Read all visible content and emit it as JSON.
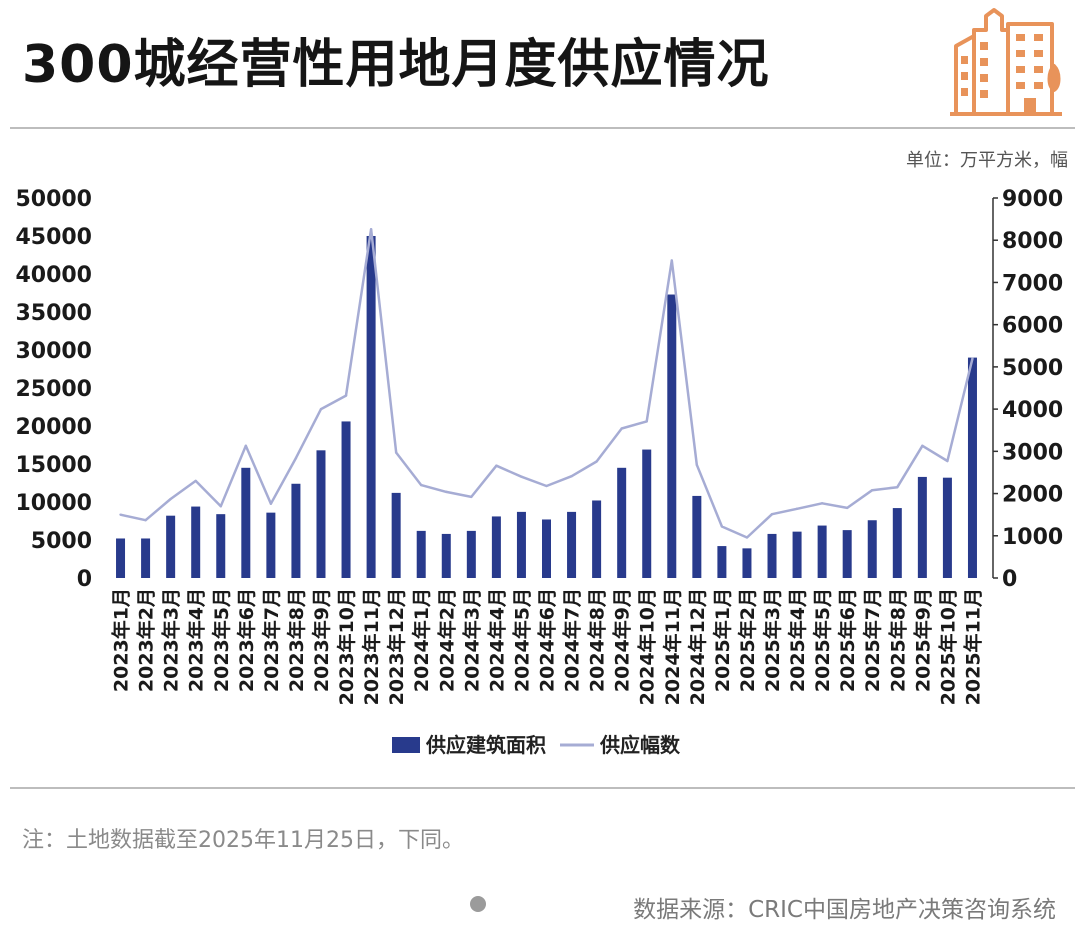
{
  "header": {
    "title": "300城经营性用地月度供应情况",
    "unit": "单位：万平方米，幅"
  },
  "colors": {
    "bar": "#283a8c",
    "line": "#a6acd4",
    "logo": "#e8935a",
    "rule": "#bdbdbd"
  },
  "chart_data": {
    "type": "bar+line",
    "categories": [
      "2023年1月",
      "2023年2月",
      "2023年3月",
      "2023年4月",
      "2023年5月",
      "2023年6月",
      "2023年7月",
      "2023年8月",
      "2023年9月",
      "2023年10月",
      "2023年11月",
      "2023年12月",
      "2024年1月",
      "2024年2月",
      "2024年3月",
      "2024年4月",
      "2024年5月",
      "2024年6月",
      "2024年7月",
      "2024年8月",
      "2024年9月",
      "2024年10月",
      "2024年11月",
      "2024年12月",
      "2025年1月",
      "2025年2月",
      "2025年3月",
      "2025年4月",
      "2025年5月",
      "2025年6月",
      "2025年7月",
      "2025年8月",
      "2025年9月",
      "2025年10月",
      "2025年11月"
    ],
    "series": [
      {
        "name": "供应建筑面积",
        "type": "bar",
        "axis": "left",
        "values": [
          5200,
          5200,
          8200,
          9400,
          8400,
          14500,
          8600,
          12400,
          16800,
          20600,
          45000,
          11200,
          6200,
          5800,
          6200,
          8100,
          8700,
          7700,
          8700,
          10200,
          14500,
          16900,
          37300,
          10800,
          4200,
          3900,
          5800,
          6100,
          6900,
          6300,
          7600,
          9200,
          13300,
          13200,
          29000
        ]
      },
      {
        "name": "供应幅数",
        "type": "line",
        "axis": "right",
        "values": [
          1500,
          1370,
          1870,
          2300,
          1700,
          3130,
          1760,
          2840,
          4000,
          4320,
          8260,
          2970,
          2200,
          2040,
          1920,
          2660,
          2400,
          2180,
          2410,
          2760,
          3540,
          3710,
          7520,
          2680,
          1220,
          960,
          1510,
          1640,
          1770,
          1660,
          2080,
          2150,
          3130,
          2770,
          5200
        ]
      }
    ],
    "ylim_left": [
      0,
      50000
    ],
    "yticks_left": [
      0,
      5000,
      10000,
      15000,
      20000,
      25000,
      30000,
      35000,
      40000,
      45000,
      50000
    ],
    "ylim_right": [
      0,
      9000
    ],
    "yticks_right": [
      0,
      1000,
      2000,
      3000,
      4000,
      5000,
      6000,
      7000,
      8000,
      9000
    ],
    "legend": {
      "placement": "bottom-center",
      "bar_label": "供应建筑面积",
      "line_label": "供应幅数"
    },
    "grid": false
  },
  "footer": {
    "note": "注：土地数据截至2025年11月25日，下同。",
    "source": "数据来源：CRIC中国房地产决策咨询系统"
  }
}
